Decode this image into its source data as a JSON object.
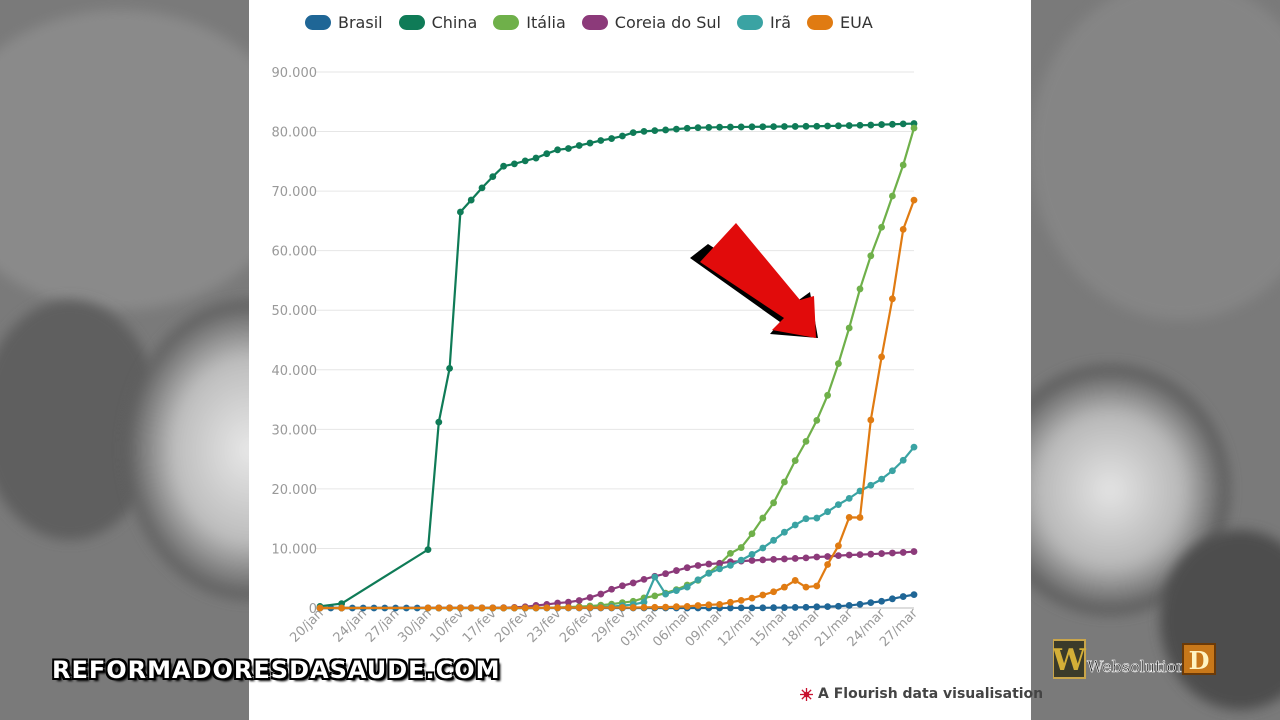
{
  "chart_data": {
    "type": "line",
    "title": "",
    "xlabel": "",
    "ylabel": "",
    "ylim": [
      0,
      90000
    ],
    "yticks": [
      "0",
      "10.000",
      "20.000",
      "30.000",
      "40.000",
      "50.000",
      "60.000",
      "70.000",
      "80.000",
      "90.000"
    ],
    "xticks": [
      "20/jan",
      "24/jan",
      "27/jan",
      "30/jan",
      "10/fev",
      "17/fev",
      "20/fev",
      "23/fev",
      "26/fev",
      "29/fev",
      "03/mar",
      "06/mar",
      "09/mar",
      "12/mar",
      "15/mar",
      "18/mar",
      "21/mar",
      "24/mar",
      "27/mar"
    ],
    "grid": true,
    "legend_position": "top",
    "series": [
      {
        "name": "Brasil",
        "color": "#1f6696",
        "x": [
          0,
          1,
          2,
          3,
          4,
          5,
          6,
          7,
          8,
          9,
          10,
          11,
          12,
          13,
          14,
          15,
          16,
          17,
          18,
          19,
          20,
          21,
          22,
          23,
          24,
          25,
          26,
          27,
          28,
          29,
          30,
          31,
          32,
          33,
          34,
          35,
          36,
          37,
          38,
          39,
          40,
          41,
          42,
          43,
          44,
          45,
          46,
          47,
          48,
          49,
          50,
          51,
          52,
          53,
          54,
          55
        ],
        "y": [
          0,
          0,
          0,
          0,
          0,
          0,
          0,
          0,
          0,
          0,
          0,
          0,
          0,
          0,
          0,
          0,
          0,
          0,
          0,
          0,
          0,
          0,
          0,
          0,
          0,
          0,
          0,
          0,
          0,
          0,
          1,
          1,
          2,
          2,
          2,
          4,
          4,
          8,
          13,
          19,
          25,
          34,
          52,
          77,
          98,
          121,
          200,
          234,
          291,
          428,
          621,
          904,
          1128,
          1546,
          1924,
          2247
        ]
      },
      {
        "name": "China",
        "color": "#0f7b57",
        "x": [
          0,
          2,
          10,
          11,
          12,
          13,
          14,
          15,
          16,
          17,
          18,
          19,
          20,
          21,
          22,
          23,
          24,
          25,
          26,
          27,
          28,
          29,
          30,
          31,
          32,
          33,
          34,
          35,
          36,
          37,
          38,
          39,
          40,
          41,
          42,
          43,
          44,
          45,
          46,
          47,
          48,
          49,
          50,
          51,
          52,
          53,
          54,
          55
        ],
        "y": [
          278,
          740,
          9802,
          31211,
          40235,
          66492,
          68500,
          70548,
          72436,
          74185,
          74576,
          75077,
          75550,
          76288,
          76936,
          77150,
          77658,
          78064,
          78497,
          78824,
          79251,
          79824,
          80026,
          80151,
          80270,
          80409,
          80552,
          80651,
          80695,
          80735,
          80754,
          80778,
          80793,
          80813,
          80824,
          80844,
          80860,
          80881,
          80894,
          80928,
          80967,
          81008,
          81054,
          81093,
          81171,
          81218,
          81285,
          81340
        ]
      },
      {
        "name": "Itália",
        "color": "#6fb04a",
        "x": [
          0,
          2,
          10,
          11,
          12,
          13,
          14,
          15,
          16,
          17,
          18,
          19,
          20,
          21,
          22,
          23,
          24,
          25,
          26,
          27,
          28,
          29,
          30,
          31,
          32,
          33,
          34,
          35,
          36,
          37,
          38,
          39,
          40,
          41,
          42,
          43,
          44,
          45,
          46,
          47,
          48,
          49,
          50,
          51,
          52,
          53,
          54,
          55
        ],
        "y": [
          0,
          0,
          3,
          3,
          3,
          3,
          3,
          3,
          3,
          3,
          3,
          3,
          3,
          20,
          79,
          157,
          229,
          323,
          470,
          655,
          889,
          1128,
          1694,
          2036,
          2502,
          3089,
          3858,
          4636,
          5883,
          7375,
          9172,
          10149,
          12462,
          15113,
          17660,
          21157,
          24747,
          27980,
          31506,
          35713,
          41035,
          47021,
          53578,
          59138,
          63927,
          69176,
          74386,
          80589
        ]
      },
      {
        "name": "Coreia do Sul",
        "color": "#8c3a7a",
        "x": [
          0,
          2,
          10,
          11,
          12,
          13,
          14,
          15,
          16,
          17,
          18,
          19,
          20,
          21,
          22,
          23,
          24,
          25,
          26,
          27,
          28,
          29,
          30,
          31,
          32,
          33,
          34,
          35,
          36,
          37,
          38,
          39,
          40,
          41,
          42,
          43,
          44,
          45,
          46,
          47,
          48,
          49,
          50,
          51,
          52,
          53,
          54,
          55
        ],
        "y": [
          1,
          1,
          24,
          27,
          28,
          28,
          29,
          30,
          31,
          51,
          104,
          204,
          433,
          602,
          833,
          977,
          1261,
          1766,
          2337,
          3150,
          3736,
          4212,
          4812,
          5328,
          5766,
          6284,
          6767,
          7134,
          7382,
          7513,
          7755,
          7869,
          7979,
          8086,
          8162,
          8236,
          8320,
          8413,
          8565,
          8652,
          8799,
          8897,
          8961,
          9037,
          9137,
          9241,
          9332,
          9478
        ]
      },
      {
        "name": "Irã",
        "color": "#3aa3a3",
        "x": [
          0,
          2,
          10,
          11,
          12,
          13,
          14,
          15,
          16,
          17,
          18,
          19,
          20,
          21,
          22,
          23,
          24,
          25,
          26,
          27,
          28,
          29,
          30,
          31,
          32,
          33,
          34,
          35,
          36,
          37,
          38,
          39,
          40,
          41,
          42,
          43,
          44,
          45,
          46,
          47,
          48,
          49,
          50,
          51,
          52,
          53,
          54,
          55
        ],
        "y": [
          0,
          0,
          0,
          0,
          0,
          0,
          0,
          0,
          0,
          0,
          0,
          2,
          5,
          18,
          28,
          43,
          61,
          95,
          139,
          245,
          388,
          593,
          978,
          5200,
          2336,
          2922,
          3513,
          4747,
          5823,
          6566,
          7161,
          8042,
          9000,
          10075,
          11364,
          12729,
          13938,
          15000,
          15100,
          16169,
          17361,
          18407,
          19644,
          20610,
          21638,
          23049,
          24811,
          27017
        ]
      },
      {
        "name": "EUA",
        "color": "#e07b12",
        "x": [
          0,
          2,
          10,
          11,
          12,
          13,
          14,
          15,
          16,
          17,
          18,
          19,
          20,
          21,
          22,
          23,
          24,
          25,
          26,
          27,
          28,
          29,
          30,
          31,
          32,
          33,
          34,
          35,
          36,
          37,
          38,
          39,
          40,
          41,
          42,
          43,
          44,
          45,
          46,
          47,
          48,
          49,
          50,
          51,
          52,
          53,
          54,
          55
        ],
        "y": [
          1,
          2,
          8,
          11,
          11,
          12,
          12,
          12,
          13,
          13,
          14,
          15,
          15,
          35,
          35,
          53,
          53,
          59,
          60,
          62,
          70,
          76,
          101,
          122,
          153,
          221,
          278,
          417,
          537,
          605,
          959,
          1281,
          1663,
          2179,
          2726,
          3499,
          4632,
          3500,
          3700,
          7300,
          10442,
          15219,
          15200,
          31573,
          42164,
          51914,
          63570,
          68489
        ]
      }
    ]
  },
  "overlay": {
    "watermark_text": "REFORMADORESDASAUDE.COM",
    "credit_text": "A Flourish data visualisation",
    "logo_text": "Websolution",
    "logo_letter_left": "W",
    "logo_letter_right": "D"
  }
}
